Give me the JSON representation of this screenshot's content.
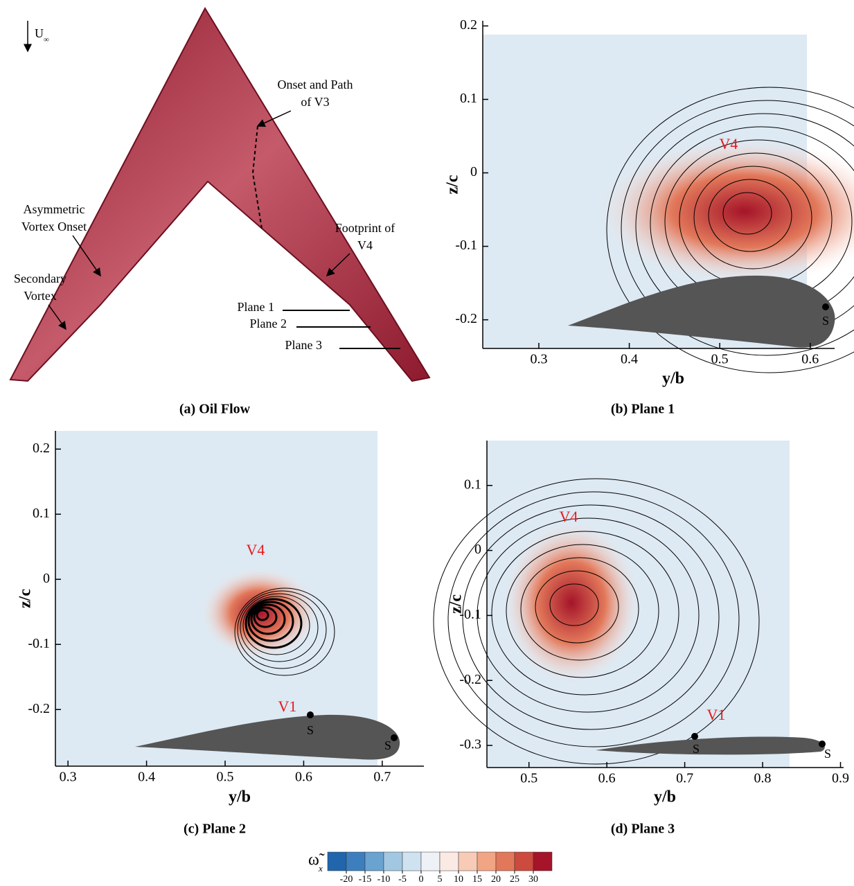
{
  "oil_flow": {
    "caption": "(a) Oil Flow",
    "freestream": "U",
    "freestream_sub": "∞",
    "annotations": [
      [
        "Onset and Path",
        "of V3"
      ],
      [
        "Asymmetric",
        "Vortex Onset"
      ],
      [
        "Footprint of",
        "V4"
      ],
      [
        "Secondary",
        "Vortex"
      ]
    ],
    "planes": [
      "Plane 1",
      "Plane 2",
      "Plane 3"
    ]
  },
  "chart_data": [
    {
      "type": "contour",
      "caption": "(b) Plane 1",
      "xlabel": "y/b",
      "ylabel": "z/c",
      "xlim": [
        0.238,
        0.627
      ],
      "xticks": [
        0.3,
        0.4,
        0.5,
        0.6
      ],
      "ylim": [
        -0.239,
        0.207
      ],
      "yticks": [
        -0.2,
        -0.1,
        0,
        0.1,
        0.2
      ],
      "annotations": [
        "V4",
        "S"
      ]
    },
    {
      "type": "contour",
      "caption": "(c) Plane 2",
      "xlabel": "y/b",
      "ylabel": "z/c",
      "xlim": [
        0.284,
        0.753
      ],
      "xticks": [
        0.3,
        0.4,
        0.5,
        0.6,
        0.7
      ],
      "ylim": [
        -0.287,
        0.228
      ],
      "yticks": [
        -0.2,
        -0.1,
        0,
        0.1,
        0.2
      ],
      "annotations": [
        "V4",
        "V1",
        "S",
        "S"
      ]
    },
    {
      "type": "contour",
      "caption": "(d) Plane 3",
      "xlabel": "y/b",
      "ylabel": "z/c",
      "xlim": [
        0.446,
        0.904
      ],
      "xticks": [
        0.5,
        0.6,
        0.7,
        0.8,
        0.9
      ],
      "ylim": [
        -0.334,
        0.169
      ],
      "yticks": [
        -0.3,
        -0.2,
        -0.1,
        0,
        0.1
      ],
      "annotations": [
        "V4",
        "V1",
        "S",
        "S"
      ]
    }
  ],
  "colorbar": {
    "symbol": "ω̃",
    "subscript": "x",
    "lim": [
      -25,
      35
    ],
    "ticks": [
      -20,
      -15,
      -10,
      -5,
      0,
      5,
      10,
      15,
      20,
      25,
      30
    ],
    "colors": [
      "#2166ac",
      "#3d7fbe",
      "#6aa2d0",
      "#a2c7e2",
      "#cfe2f0",
      "#eef2f6",
      "#fbe9e3",
      "#f7cbb6",
      "#f1a584",
      "#e2785a",
      "#cc4a3e",
      "#a51429"
    ]
  }
}
